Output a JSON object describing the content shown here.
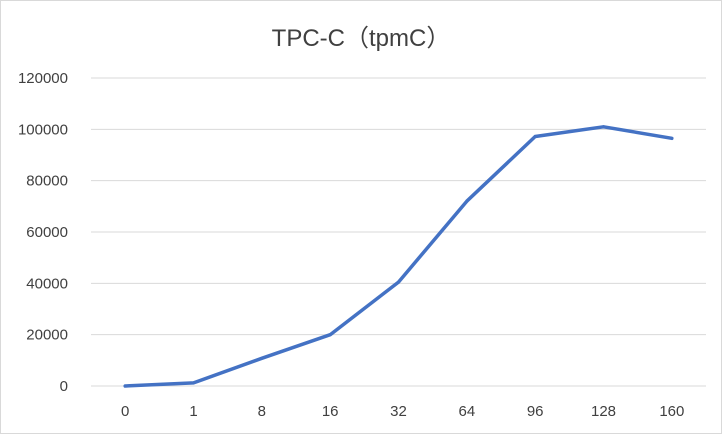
{
  "chart_data": {
    "type": "line",
    "title": "TPC-C（tpmC）",
    "categories": [
      "0",
      "1",
      "8",
      "16",
      "32",
      "64",
      "96",
      "128",
      "160"
    ],
    "series": [
      {
        "values": [
          0,
          1200,
          10800,
          20000,
          40500,
          72000,
          97200,
          101000,
          96500
        ],
        "color": "#4472c4"
      }
    ],
    "ylim": [
      0,
      120000
    ],
    "yticks": [
      0,
      20000,
      40000,
      60000,
      80000,
      100000,
      120000
    ],
    "xlabel": "",
    "ylabel": "",
    "grid": true,
    "legend": "none",
    "colors": {
      "line": "#4472c4",
      "grid": "#d9d9d9",
      "text": "#404040"
    }
  }
}
